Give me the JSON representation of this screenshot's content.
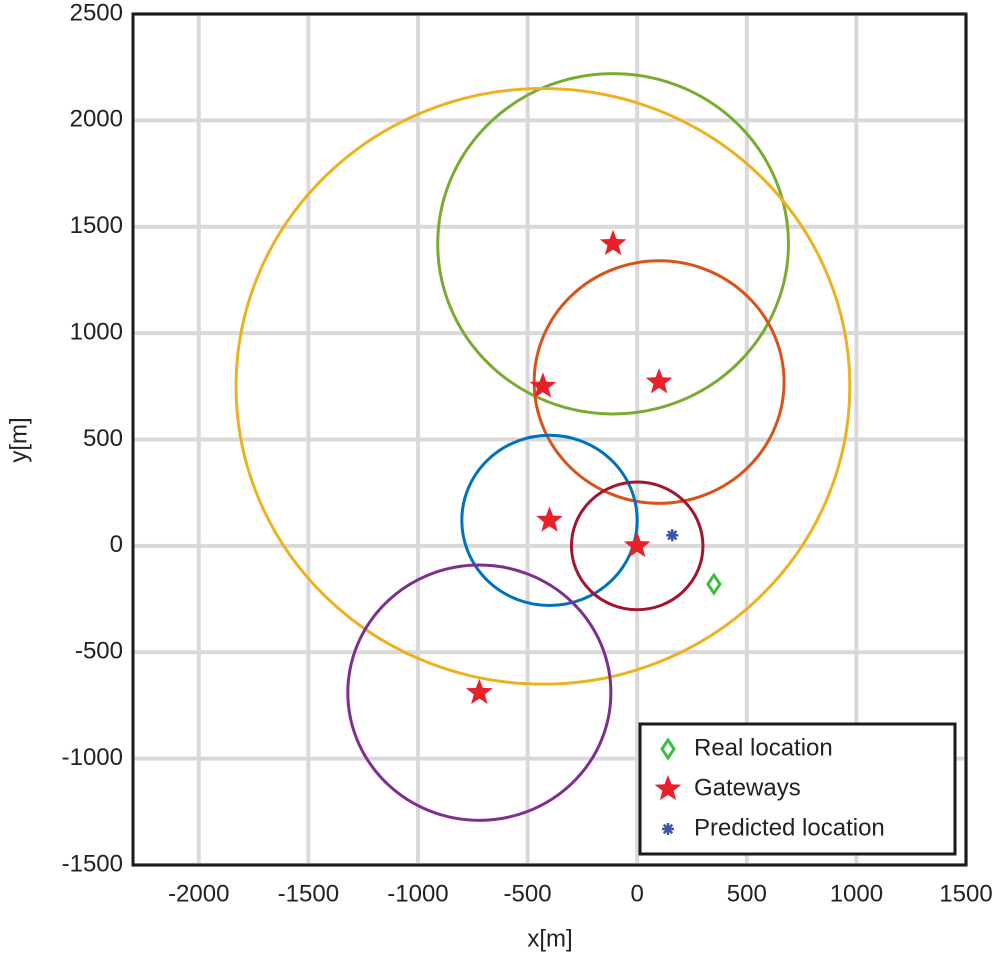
{
  "chart_data": {
    "type": "scatter",
    "xlabel": "x[m]",
    "ylabel": "y[m]",
    "xlim": [
      -2300,
      1500
    ],
    "ylim": [
      -1500,
      2500
    ],
    "xticks": [
      -2000,
      -1500,
      -1000,
      -500,
      0,
      500,
      1000,
      1500
    ],
    "yticks": [
      -1500,
      -1000,
      -500,
      0,
      500,
      1000,
      1500,
      2000,
      2500
    ],
    "grid": true,
    "legend": "southeast",
    "series": [
      {
        "name": "Real location",
        "color": "#3cbf3c",
        "marker": "diamond",
        "x": [
          350
        ],
        "y": [
          -180
        ]
      },
      {
        "name": "Gateways",
        "color": "#e8202a",
        "marker": "star",
        "x": [
          -110,
          100,
          -430,
          -400,
          0,
          -720
        ],
        "y": [
          1420,
          770,
          750,
          120,
          0,
          -690
        ]
      },
      {
        "name": "Predicted location",
        "color": "#3a55a8",
        "marker": "asterisk",
        "x": [
          160
        ],
        "y": [
          50
        ]
      }
    ],
    "circles": [
      {
        "x": -110,
        "y": 1420,
        "r": 800,
        "color": "#77ac30"
      },
      {
        "x": 100,
        "y": 770,
        "r": 570,
        "color": "#d95319"
      },
      {
        "x": -430,
        "y": 750,
        "r": 1400,
        "color": "#edb120"
      },
      {
        "x": -400,
        "y": 120,
        "r": 400,
        "color": "#0072bd"
      },
      {
        "x": 0,
        "y": 0,
        "r": 300,
        "color": "#a2142f"
      },
      {
        "x": -720,
        "y": -690,
        "r": 600,
        "color": "#7e2f8e"
      }
    ]
  }
}
